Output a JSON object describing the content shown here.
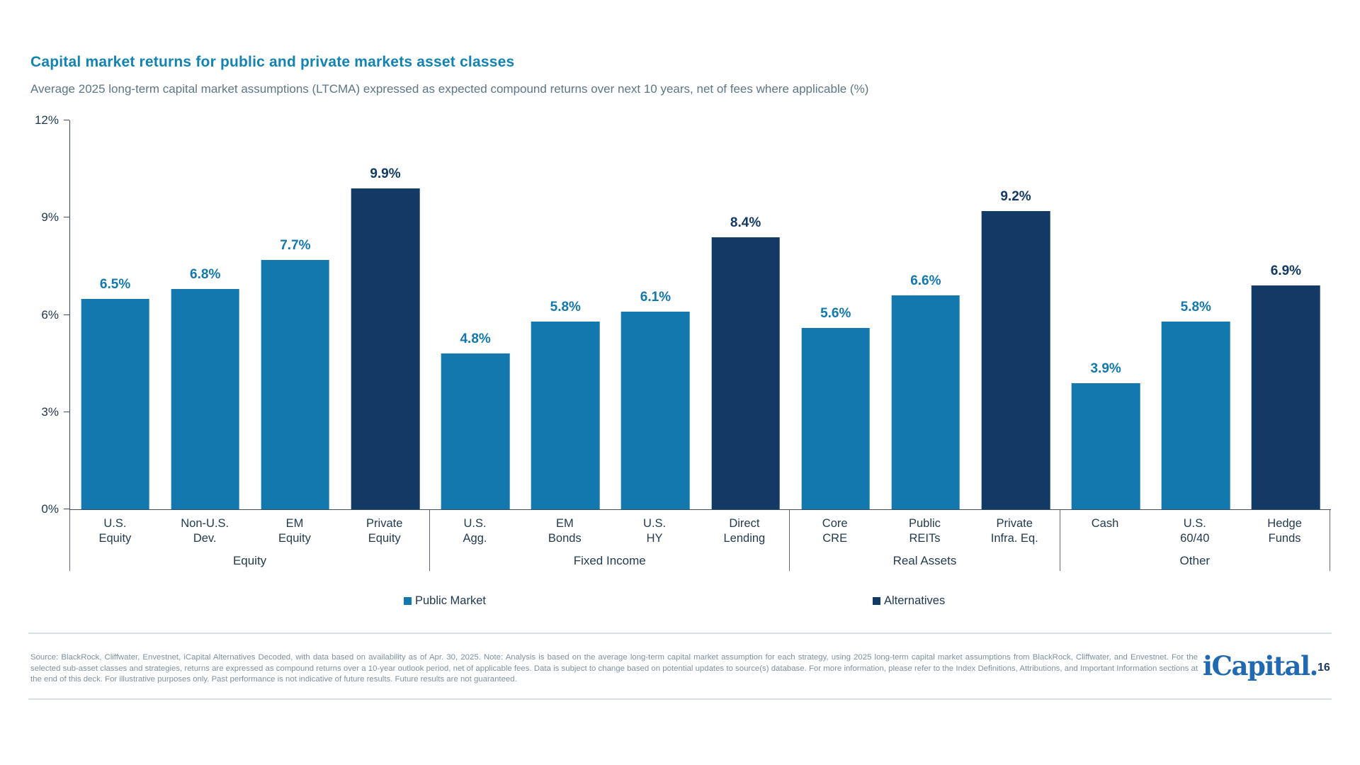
{
  "header": {
    "title": "Capital market returns for public and private markets asset classes",
    "subtitle": "Average 2025 long-term capital market assumptions (LTCMA) expressed as expected compound returns over next 10 years, net of fees where applicable (%)"
  },
  "colors": {
    "public_market": "#1278AD",
    "alternatives": "#123A64",
    "title_blue": "#1283B2",
    "axis_text": "#1E354E",
    "logo_blue": "#2169B0"
  },
  "chart_data": {
    "type": "bar",
    "title": "Capital market returns for public and private markets asset classes",
    "subtitle": "Average 2025 long-term capital market assumptions (LTCMA) expressed as expected compound returns over next 10 years, net of fees where applicable (%)",
    "unit": "%",
    "ylim": [
      0,
      12
    ],
    "yticks": [
      "0%",
      "3%",
      "6%",
      "9%",
      "12%"
    ],
    "grid": false,
    "legend_position": "bottom",
    "series": [
      {
        "name": "Public Market",
        "color": "#1278AD"
      },
      {
        "name": "Alternatives",
        "color": "#123A64"
      }
    ],
    "groups": [
      {
        "label": "Equity",
        "bars": [
          {
            "label": "U.S. Equity",
            "label_lines": [
              "U.S.",
              "Equity"
            ],
            "value": 6.5,
            "series": "Public Market"
          },
          {
            "label": "Non-U.S. Dev.",
            "label_lines": [
              "Non-U.S.",
              "Dev."
            ],
            "value": 6.8,
            "series": "Public Market"
          },
          {
            "label": "EM Equity",
            "label_lines": [
              "EM",
              "Equity"
            ],
            "value": 7.7,
            "series": "Public Market"
          },
          {
            "label": "Private Equity",
            "label_lines": [
              "Private",
              "Equity"
            ],
            "value": 9.9,
            "series": "Alternatives"
          }
        ]
      },
      {
        "label": "Fixed Income",
        "bars": [
          {
            "label": "U.S. Agg.",
            "label_lines": [
              "U.S.",
              "Agg."
            ],
            "value": 4.8,
            "series": "Public Market"
          },
          {
            "label": "EM Bonds",
            "label_lines": [
              "EM",
              "Bonds"
            ],
            "value": 5.8,
            "series": "Public Market"
          },
          {
            "label": "U.S. HY",
            "label_lines": [
              "U.S.",
              "HY"
            ],
            "value": 6.1,
            "series": "Public Market"
          },
          {
            "label": "Direct Lending",
            "label_lines": [
              "Direct",
              "Lending"
            ],
            "value": 8.4,
            "series": "Alternatives"
          }
        ]
      },
      {
        "label": "Real Assets",
        "bars": [
          {
            "label": "Core CRE",
            "label_lines": [
              "Core",
              "CRE"
            ],
            "value": 5.6,
            "series": "Public Market"
          },
          {
            "label": "Public REITs",
            "label_lines": [
              "Public",
              "REITs"
            ],
            "value": 6.6,
            "series": "Public Market"
          },
          {
            "label": "Private Infra. Eq.",
            "label_lines": [
              "Private",
              "Infra. Eq."
            ],
            "value": 9.2,
            "series": "Alternatives"
          }
        ]
      },
      {
        "label": "Other",
        "bars": [
          {
            "label": "Cash",
            "label_lines": [
              "Cash"
            ],
            "value": 3.9,
            "series": "Public Market"
          },
          {
            "label": "U.S. 60/40",
            "label_lines": [
              "U.S.",
              "60/40"
            ],
            "value": 5.8,
            "series": "Public Market"
          },
          {
            "label": "Hedge Funds",
            "label_lines": [
              "Hedge",
              "Funds"
            ],
            "value": 6.9,
            "series": "Alternatives"
          }
        ]
      }
    ]
  },
  "legend": {
    "public": "Public Market",
    "alternatives": "Alternatives"
  },
  "footer": {
    "source": "Source: BlackRock, Cliffwater, Envestnet, iCapital Alternatives Decoded, with data based on availability as of Apr. 30, 2025. Note: Analysis is based on the average long-term capital market assumption for each strategy, using 2025 long-term capital market assumptions from BlackRock, Cliffwater, and Envestnet. For the selected sub-asset classes and strategies, returns are expressed as compound returns over a 10-year outlook period, net of applicable fees. Data is subject to change based on potential updates to source(s) database. For more information, please refer to the Index Definitions, Attributions, and Important Information sections at the end of this deck. For illustrative purposes only. Past performance is not indicative of future results. Future results are not guaranteed.",
    "logo": "iCapital.",
    "page_number": "16"
  }
}
